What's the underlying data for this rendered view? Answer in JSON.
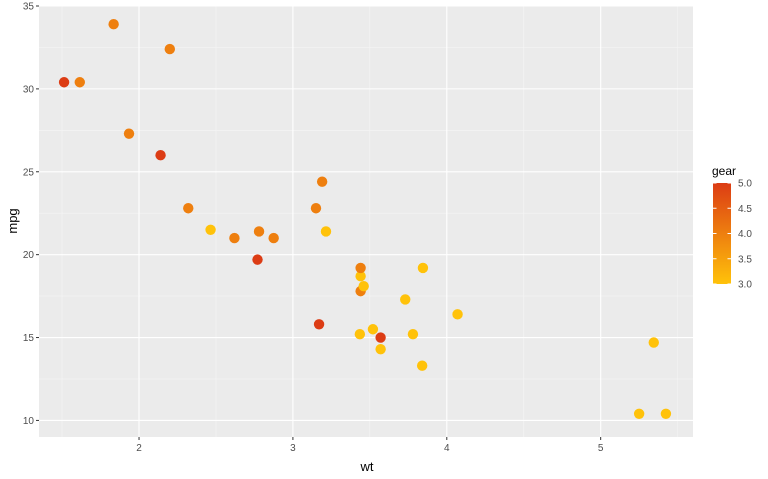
{
  "chart_data": {
    "type": "scatter",
    "xlabel": "wt",
    "ylabel": "mpg",
    "xlim": [
      1.35,
      5.6
    ],
    "ylim": [
      9.0,
      35.0
    ],
    "x_ticks": [
      2,
      3,
      4,
      5
    ],
    "y_ticks": [
      10,
      15,
      20,
      25,
      30,
      35
    ],
    "x_tick_labels": [
      "2",
      "3",
      "4",
      "5"
    ],
    "y_tick_labels": [
      "10",
      "15",
      "20",
      "25",
      "30",
      "35"
    ],
    "grid": true,
    "legend": {
      "title": "gear",
      "placement": "right",
      "labels": [
        "5.0",
        "4.5",
        "4.0",
        "3.5",
        "3.0"
      ],
      "low_color": "#FFC20A",
      "high_color": "#DC3C14",
      "range": [
        3.0,
        5.0
      ]
    },
    "points": [
      {
        "wt": 1.513,
        "mpg": 30.4,
        "gear": 5
      },
      {
        "wt": 1.615,
        "mpg": 30.4,
        "gear": 4
      },
      {
        "wt": 1.835,
        "mpg": 33.9,
        "gear": 4
      },
      {
        "wt": 1.935,
        "mpg": 27.3,
        "gear": 4
      },
      {
        "wt": 2.14,
        "mpg": 26.0,
        "gear": 5
      },
      {
        "wt": 2.2,
        "mpg": 32.4,
        "gear": 4
      },
      {
        "wt": 2.32,
        "mpg": 22.8,
        "gear": 4
      },
      {
        "wt": 2.465,
        "mpg": 21.5,
        "gear": 3
      },
      {
        "wt": 2.62,
        "mpg": 21.0,
        "gear": 4
      },
      {
        "wt": 2.77,
        "mpg": 19.7,
        "gear": 5
      },
      {
        "wt": 2.78,
        "mpg": 21.4,
        "gear": 4
      },
      {
        "wt": 2.875,
        "mpg": 21.0,
        "gear": 4
      },
      {
        "wt": 3.15,
        "mpg": 22.8,
        "gear": 4
      },
      {
        "wt": 3.17,
        "mpg": 15.8,
        "gear": 5
      },
      {
        "wt": 3.19,
        "mpg": 24.4,
        "gear": 4
      },
      {
        "wt": 3.215,
        "mpg": 21.4,
        "gear": 3
      },
      {
        "wt": 3.435,
        "mpg": 15.2,
        "gear": 3
      },
      {
        "wt": 3.44,
        "mpg": 18.7,
        "gear": 3
      },
      {
        "wt": 3.44,
        "mpg": 19.2,
        "gear": 4
      },
      {
        "wt": 3.44,
        "mpg": 17.8,
        "gear": 4
      },
      {
        "wt": 3.46,
        "mpg": 18.1,
        "gear": 3
      },
      {
        "wt": 3.52,
        "mpg": 15.5,
        "gear": 3
      },
      {
        "wt": 3.57,
        "mpg": 15.0,
        "gear": 5
      },
      {
        "wt": 3.57,
        "mpg": 14.3,
        "gear": 3
      },
      {
        "wt": 3.73,
        "mpg": 17.3,
        "gear": 3
      },
      {
        "wt": 3.78,
        "mpg": 15.2,
        "gear": 3
      },
      {
        "wt": 3.84,
        "mpg": 13.3,
        "gear": 3
      },
      {
        "wt": 3.845,
        "mpg": 19.2,
        "gear": 3
      },
      {
        "wt": 4.07,
        "mpg": 16.4,
        "gear": 3
      },
      {
        "wt": 5.25,
        "mpg": 10.4,
        "gear": 3
      },
      {
        "wt": 5.345,
        "mpg": 14.7,
        "gear": 3
      },
      {
        "wt": 5.424,
        "mpg": 10.4,
        "gear": 3
      }
    ]
  }
}
